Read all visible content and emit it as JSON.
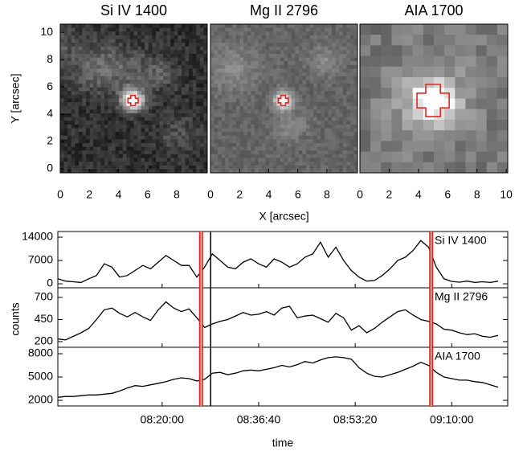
{
  "chart_data": [
    {
      "type": "image",
      "title": "Si IV 1400",
      "ylabel": "Y [arcsec]",
      "xlim": [
        0,
        10.1
      ],
      "ylim": [
        -0.3,
        10.6
      ],
      "xticks": [
        0,
        2,
        4,
        6,
        8
      ],
      "yticks": [
        0,
        2,
        4,
        6,
        8,
        10
      ],
      "marker": {
        "x": 5,
        "y": 5,
        "size": 0.35,
        "color": "#e8251f"
      }
    },
    {
      "type": "image",
      "title": "Mg II 2796",
      "xlabel": "X [arcsec]",
      "xlim": [
        0,
        10.1
      ],
      "ylim": [
        -0.3,
        10.6
      ],
      "xticks": [
        0,
        2,
        4,
        6,
        8
      ],
      "marker": {
        "x": 5,
        "y": 5,
        "size": 0.35,
        "color": "#e8251f"
      }
    },
    {
      "type": "image",
      "title": "AIA 1700",
      "xlim": [
        0,
        10.1
      ],
      "ylim": [
        -0.3,
        10.6
      ],
      "xticks": [
        0,
        2,
        4,
        6,
        8,
        10
      ],
      "marker": {
        "x": 5,
        "y": 5,
        "size": 1.1,
        "color": "#e8251f"
      }
    },
    {
      "type": "line",
      "xlabel": "time",
      "ylabel": "counts",
      "xlim": [
        "08:02:00",
        "09:19:40"
      ],
      "xticks": [
        "08:20:00",
        "08:36:40",
        "08:53:20",
        "09:10:00"
      ],
      "vlines": [
        {
          "x": "08:26:43",
          "color": "#e8251f"
        },
        {
          "x": "08:28:23",
          "color": "#000000"
        },
        {
          "x": "09:06:27",
          "color": "#e8251f"
        }
      ],
      "x": [
        "08:02:00",
        "08:03:20",
        "08:04:40",
        "08:06:00",
        "08:07:20",
        "08:08:40",
        "08:10:00",
        "08:11:20",
        "08:12:40",
        "08:14:00",
        "08:15:20",
        "08:16:40",
        "08:18:00",
        "08:19:20",
        "08:20:40",
        "08:22:00",
        "08:23:20",
        "08:24:40",
        "08:26:00",
        "08:27:20",
        "08:28:40",
        "08:30:00",
        "08:31:20",
        "08:32:40",
        "08:34:00",
        "08:35:20",
        "08:36:40",
        "08:38:00",
        "08:39:20",
        "08:40:40",
        "08:42:00",
        "08:43:20",
        "08:44:40",
        "08:46:00",
        "08:47:20",
        "08:48:40",
        "08:50:00",
        "08:51:20",
        "08:52:40",
        "08:54:00",
        "08:55:20",
        "08:56:40",
        "08:58:00",
        "08:59:20",
        "09:00:40",
        "09:02:00",
        "09:03:20",
        "09:04:40",
        "09:06:00",
        "09:07:20",
        "09:08:40",
        "09:10:00",
        "09:11:20",
        "09:12:40",
        "09:14:00",
        "09:15:20",
        "09:16:40",
        "09:18:00"
      ],
      "series": [
        {
          "name": "Si IV 1400",
          "color": "#000000",
          "ylim": [
            -1200,
            15700
          ],
          "yticks": [
            0,
            7000,
            14000
          ],
          "values": [
            1500,
            800,
            600,
            400,
            1500,
            2500,
            6000,
            5000,
            2000,
            2500,
            4000,
            5500,
            4500,
            6500,
            8500,
            7000,
            5500,
            5500,
            2000,
            5000,
            9000,
            7000,
            5000,
            4500,
            6500,
            7500,
            6000,
            5000,
            7500,
            6500,
            5000,
            6000,
            8000,
            9000,
            12500,
            8000,
            11000,
            7000,
            4000,
            2000,
            800,
            1000,
            2500,
            4500,
            7000,
            8000,
            10000,
            13000,
            11000,
            5000,
            1500,
            700,
            500,
            800,
            400,
            600,
            400,
            800
          ]
        },
        {
          "name": "Mg II 2796",
          "color": "#000000",
          "ylim": [
            136,
            809
          ],
          "yticks": [
            200,
            450,
            700
          ],
          "values": [
            230,
            220,
            260,
            300,
            350,
            450,
            560,
            580,
            520,
            480,
            530,
            480,
            440,
            560,
            650,
            580,
            540,
            570,
            470,
            360,
            400,
            430,
            450,
            490,
            530,
            500,
            510,
            540,
            500,
            580,
            600,
            470,
            490,
            500,
            460,
            420,
            520,
            470,
            330,
            380,
            300,
            350,
            420,
            480,
            540,
            560,
            500,
            450,
            430,
            400,
            340,
            330,
            300,
            280,
            290,
            260,
            250,
            270
          ]
        },
        {
          "name": "AIA 1700",
          "color": "#000000",
          "ylim": [
            1280,
            8830
          ],
          "yticks": [
            2000,
            5000,
            8000
          ],
          "values": [
            2400,
            2500,
            2500,
            2600,
            2700,
            2700,
            2800,
            2900,
            3200,
            3600,
            3900,
            3800,
            4000,
            4200,
            4400,
            4700,
            4900,
            4800,
            4500,
            4700,
            5500,
            5600,
            5300,
            5500,
            5800,
            5900,
            5800,
            6000,
            6200,
            6500,
            6300,
            6600,
            7000,
            6800,
            7200,
            7500,
            7600,
            7500,
            7300,
            6200,
            5500,
            5100,
            5000,
            5300,
            5600,
            6000,
            6400,
            6900,
            6500,
            5600,
            5000,
            4800,
            4600,
            4600,
            4400,
            4300,
            4000,
            3700
          ]
        }
      ]
    }
  ]
}
